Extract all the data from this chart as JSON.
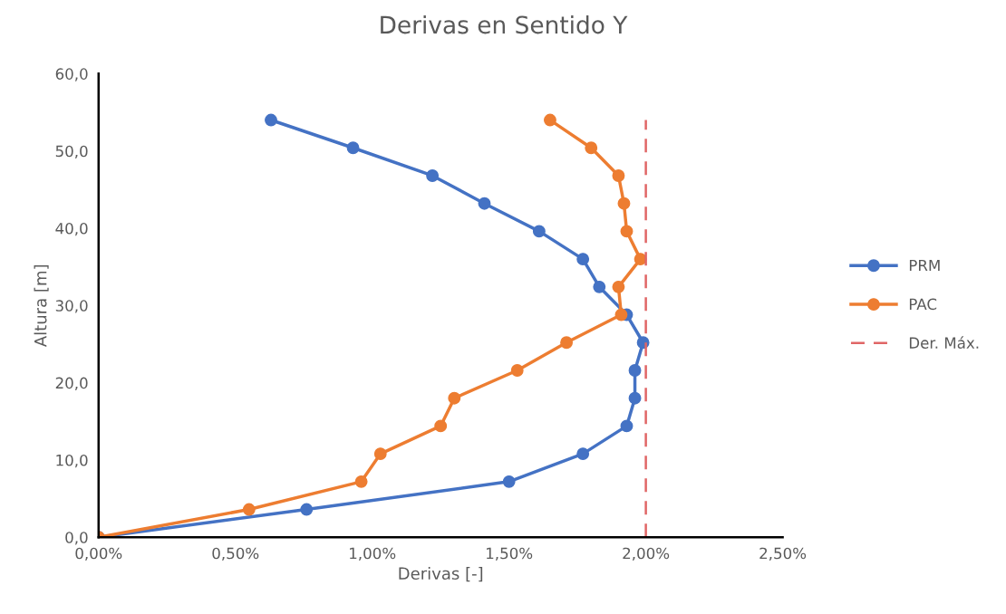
{
  "chart_data": {
    "type": "line",
    "title": "Derivas en Sentido Y",
    "xlabel": "Derivas [-]",
    "ylabel": "Altura [m]",
    "xlim": [
      0,
      2.5
    ],
    "xticks": [
      {
        "value": 0,
        "label": "0,00%"
      },
      {
        "value": 0.5,
        "label": "0,50%"
      },
      {
        "value": 1,
        "label": "1,00%"
      },
      {
        "value": 1.5,
        "label": "1,50%"
      },
      {
        "value": 2,
        "label": "2,00%"
      },
      {
        "value": 2.5,
        "label": "2,50%"
      }
    ],
    "ylim": [
      0,
      60
    ],
    "yticks": [
      {
        "value": 0,
        "label": "0,0"
      },
      {
        "value": 10,
        "label": "10,0"
      },
      {
        "value": 20,
        "label": "20,0"
      },
      {
        "value": 30,
        "label": "30,0"
      },
      {
        "value": 40,
        "label": "40,0"
      },
      {
        "value": 50,
        "label": "50,0"
      },
      {
        "value": 60,
        "label": "60,0"
      }
    ],
    "grid": false,
    "legend": "right",
    "marker": "circle",
    "series": [
      {
        "name": "PRM",
        "color": "#4472c4",
        "x": [
          0,
          0.76,
          1.5,
          1.77,
          1.93,
          1.96,
          1.96,
          1.99,
          1.93,
          1.83,
          1.77,
          1.61,
          1.41,
          1.22,
          0.93,
          0.63
        ],
        "values": [
          0,
          3.6,
          7.2,
          10.8,
          14.4,
          18.0,
          21.6,
          25.2,
          28.8,
          32.4,
          36.0,
          39.6,
          43.2,
          46.8,
          50.4,
          54.0
        ]
      },
      {
        "name": "PAC",
        "color": "#ed7d31",
        "x": [
          0,
          0.55,
          0.96,
          1.03,
          1.25,
          1.3,
          1.53,
          1.71,
          1.91,
          1.9,
          1.98,
          1.93,
          1.92,
          1.9,
          1.8,
          1.65
        ],
        "values": [
          0,
          3.6,
          7.2,
          10.8,
          14.4,
          18.0,
          21.6,
          25.2,
          28.8,
          32.4,
          36.0,
          39.6,
          43.2,
          46.8,
          50.4,
          54.0
        ]
      },
      {
        "name": "Der. Máx.",
        "color": "#e06666",
        "marker": "none",
        "line_style": "dashed",
        "x": [
          2,
          2
        ],
        "values": [
          0,
          54
        ]
      }
    ]
  }
}
